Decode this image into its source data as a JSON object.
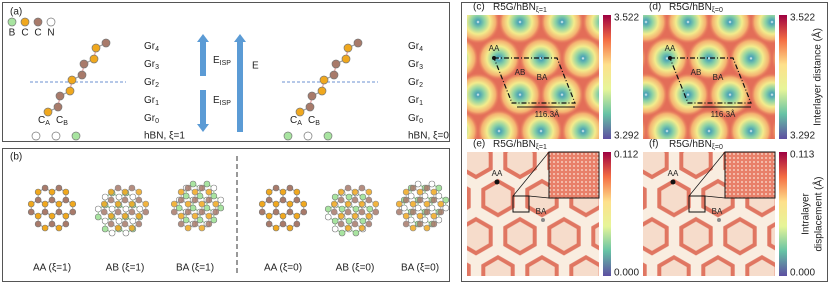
{
  "panel_a": {
    "label": "(a)",
    "legend": [
      "B",
      "C",
      "C",
      "N"
    ],
    "left": {
      "ca": {
        "base": "C",
        "sub": "A"
      },
      "cb": {
        "base": "C",
        "sub": "B"
      },
      "layers": [
        {
          "base": "Gr",
          "sub": "4"
        },
        {
          "base": "Gr",
          "sub": "3"
        },
        {
          "base": "Gr",
          "sub": "2"
        },
        {
          "base": "Gr",
          "sub": "1"
        },
        {
          "base": "Gr",
          "sub": "0"
        }
      ],
      "hbn": "hBN, ξ=1"
    },
    "fields": {
      "isp_up": {
        "base": "E",
        "sub": "ISP"
      },
      "isp_down": {
        "base": "E",
        "sub": "ISP"
      },
      "e": "E"
    },
    "right": {
      "ca": {
        "base": "C",
        "sub": "A"
      },
      "cb": {
        "base": "C",
        "sub": "B"
      },
      "layers": [
        {
          "base": "Gr",
          "sub": "4"
        },
        {
          "base": "Gr",
          "sub": "3"
        },
        {
          "base": "Gr",
          "sub": "2"
        },
        {
          "base": "Gr",
          "sub": "1"
        },
        {
          "base": "Gr",
          "sub": "0"
        }
      ],
      "hbn": "hBN, ξ=0"
    }
  },
  "panel_b": {
    "label": "(b)",
    "stackings": [
      "AA (ξ=1)",
      "AB (ξ=1)",
      "BA (ξ=1)",
      "AA (ξ=0)",
      "AB (ξ=0)",
      "BA (ξ=0)"
    ]
  },
  "panel_c": {
    "label": "(c)",
    "title": {
      "base": "R5G/hBN",
      "sub": "ξ=1"
    },
    "sites": [
      "AA",
      "AB",
      "BA"
    ],
    "length": "116.3Å",
    "colorbar": {
      "max": "3.522",
      "min": "3.292"
    }
  },
  "panel_d": {
    "label": "(d)",
    "title": {
      "base": "R5G/hBN",
      "sub": "ξ=0"
    },
    "sites": [
      "AA",
      "AB",
      "BA"
    ],
    "length": "116.3Å",
    "colorbar": {
      "max": "3.522",
      "min": "3.292"
    }
  },
  "panel_e": {
    "label": "(e)",
    "title": {
      "base": "R5G/hBN",
      "sub": "ξ=1"
    },
    "sites": [
      "AA",
      "BA"
    ],
    "colorbar": {
      "max": "0.112",
      "min": "0.000"
    }
  },
  "panel_f": {
    "label": "(f)",
    "title": {
      "base": "R5G/hBN",
      "sub": "ξ=0"
    },
    "sites": [
      "AA",
      "BA"
    ],
    "colorbar": {
      "max": "0.113",
      "min": "0.000"
    }
  },
  "axis_labels": {
    "top": "Interlayer distance (Å)",
    "bottom": [
      "Intralayer",
      "displacement (Å)"
    ]
  }
}
